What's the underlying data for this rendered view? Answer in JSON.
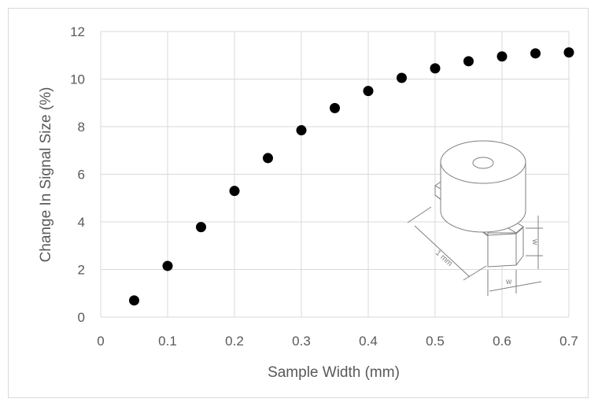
{
  "chart_data": {
    "type": "scatter",
    "title": "",
    "xlabel": "Sample Width (mm)",
    "ylabel": "Change In Signal Size (%)",
    "xlim": [
      0,
      0.7
    ],
    "ylim": [
      0,
      12
    ],
    "x_ticks": [
      "0",
      "0.1",
      "0.2",
      "0.3",
      "0.4",
      "0.5",
      "0.6",
      "0.7"
    ],
    "y_ticks": [
      "0",
      "2",
      "4",
      "6",
      "8",
      "10",
      "12"
    ],
    "grid": true,
    "legend": "none",
    "marker_color": "#000000",
    "grid_color": "#d9d9d9",
    "series": [
      {
        "x": [
          0.05,
          0.1,
          0.15,
          0.2,
          0.25,
          0.3,
          0.35,
          0.4,
          0.45,
          0.5,
          0.55,
          0.6,
          0.65,
          0.7
        ],
        "y": [
          0.7,
          2.15,
          3.78,
          5.3,
          6.68,
          7.85,
          8.78,
          9.5,
          10.05,
          10.45,
          10.75,
          10.95,
          11.08,
          11.12
        ]
      }
    ],
    "inset": {
      "labels": [
        "1 mm",
        "w",
        "w"
      ]
    }
  }
}
